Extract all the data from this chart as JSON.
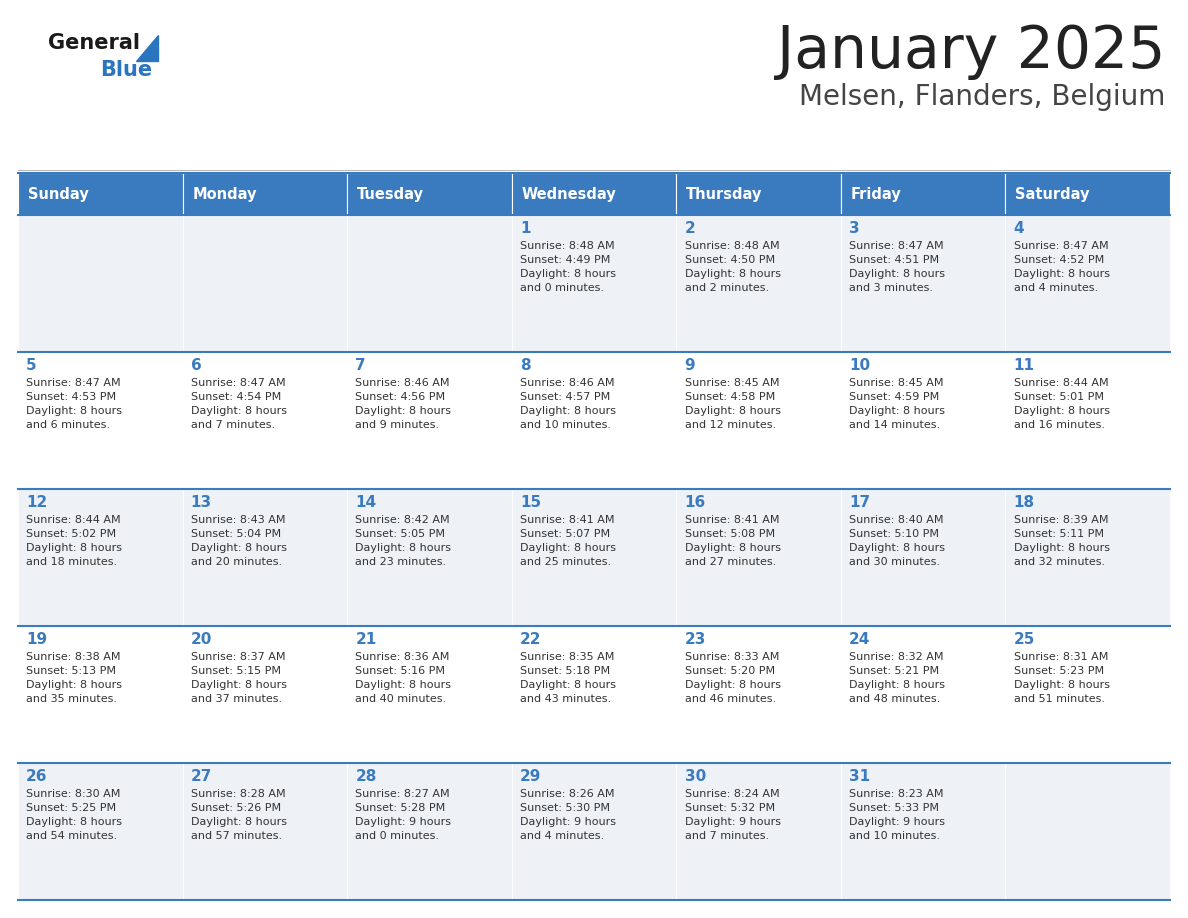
{
  "title": "January 2025",
  "subtitle": "Melsen, Flanders, Belgium",
  "header_color": "#3a7bbf",
  "header_text_color": "#ffffff",
  "cell_bg_color": "#eef2f7",
  "alt_cell_bg_color": "#ffffff",
  "day_headers": [
    "Sunday",
    "Monday",
    "Tuesday",
    "Wednesday",
    "Thursday",
    "Friday",
    "Saturday"
  ],
  "title_color": "#222222",
  "subtitle_color": "#444444",
  "day_number_color": "#3a7bbf",
  "cell_text_color": "#333333",
  "grid_color": "#3a7bbf",
  "weeks": [
    [
      {
        "day": null,
        "info": null
      },
      {
        "day": null,
        "info": null
      },
      {
        "day": null,
        "info": null
      },
      {
        "day": "1",
        "info": "Sunrise: 8:48 AM\nSunset: 4:49 PM\nDaylight: 8 hours\nand 0 minutes."
      },
      {
        "day": "2",
        "info": "Sunrise: 8:48 AM\nSunset: 4:50 PM\nDaylight: 8 hours\nand 2 minutes."
      },
      {
        "day": "3",
        "info": "Sunrise: 8:47 AM\nSunset: 4:51 PM\nDaylight: 8 hours\nand 3 minutes."
      },
      {
        "day": "4",
        "info": "Sunrise: 8:47 AM\nSunset: 4:52 PM\nDaylight: 8 hours\nand 4 minutes."
      }
    ],
    [
      {
        "day": "5",
        "info": "Sunrise: 8:47 AM\nSunset: 4:53 PM\nDaylight: 8 hours\nand 6 minutes."
      },
      {
        "day": "6",
        "info": "Sunrise: 8:47 AM\nSunset: 4:54 PM\nDaylight: 8 hours\nand 7 minutes."
      },
      {
        "day": "7",
        "info": "Sunrise: 8:46 AM\nSunset: 4:56 PM\nDaylight: 8 hours\nand 9 minutes."
      },
      {
        "day": "8",
        "info": "Sunrise: 8:46 AM\nSunset: 4:57 PM\nDaylight: 8 hours\nand 10 minutes."
      },
      {
        "day": "9",
        "info": "Sunrise: 8:45 AM\nSunset: 4:58 PM\nDaylight: 8 hours\nand 12 minutes."
      },
      {
        "day": "10",
        "info": "Sunrise: 8:45 AM\nSunset: 4:59 PM\nDaylight: 8 hours\nand 14 minutes."
      },
      {
        "day": "11",
        "info": "Sunrise: 8:44 AM\nSunset: 5:01 PM\nDaylight: 8 hours\nand 16 minutes."
      }
    ],
    [
      {
        "day": "12",
        "info": "Sunrise: 8:44 AM\nSunset: 5:02 PM\nDaylight: 8 hours\nand 18 minutes."
      },
      {
        "day": "13",
        "info": "Sunrise: 8:43 AM\nSunset: 5:04 PM\nDaylight: 8 hours\nand 20 minutes."
      },
      {
        "day": "14",
        "info": "Sunrise: 8:42 AM\nSunset: 5:05 PM\nDaylight: 8 hours\nand 23 minutes."
      },
      {
        "day": "15",
        "info": "Sunrise: 8:41 AM\nSunset: 5:07 PM\nDaylight: 8 hours\nand 25 minutes."
      },
      {
        "day": "16",
        "info": "Sunrise: 8:41 AM\nSunset: 5:08 PM\nDaylight: 8 hours\nand 27 minutes."
      },
      {
        "day": "17",
        "info": "Sunrise: 8:40 AM\nSunset: 5:10 PM\nDaylight: 8 hours\nand 30 minutes."
      },
      {
        "day": "18",
        "info": "Sunrise: 8:39 AM\nSunset: 5:11 PM\nDaylight: 8 hours\nand 32 minutes."
      }
    ],
    [
      {
        "day": "19",
        "info": "Sunrise: 8:38 AM\nSunset: 5:13 PM\nDaylight: 8 hours\nand 35 minutes."
      },
      {
        "day": "20",
        "info": "Sunrise: 8:37 AM\nSunset: 5:15 PM\nDaylight: 8 hours\nand 37 minutes."
      },
      {
        "day": "21",
        "info": "Sunrise: 8:36 AM\nSunset: 5:16 PM\nDaylight: 8 hours\nand 40 minutes."
      },
      {
        "day": "22",
        "info": "Sunrise: 8:35 AM\nSunset: 5:18 PM\nDaylight: 8 hours\nand 43 minutes."
      },
      {
        "day": "23",
        "info": "Sunrise: 8:33 AM\nSunset: 5:20 PM\nDaylight: 8 hours\nand 46 minutes."
      },
      {
        "day": "24",
        "info": "Sunrise: 8:32 AM\nSunset: 5:21 PM\nDaylight: 8 hours\nand 48 minutes."
      },
      {
        "day": "25",
        "info": "Sunrise: 8:31 AM\nSunset: 5:23 PM\nDaylight: 8 hours\nand 51 minutes."
      }
    ],
    [
      {
        "day": "26",
        "info": "Sunrise: 8:30 AM\nSunset: 5:25 PM\nDaylight: 8 hours\nand 54 minutes."
      },
      {
        "day": "27",
        "info": "Sunrise: 8:28 AM\nSunset: 5:26 PM\nDaylight: 8 hours\nand 57 minutes."
      },
      {
        "day": "28",
        "info": "Sunrise: 8:27 AM\nSunset: 5:28 PM\nDaylight: 9 hours\nand 0 minutes."
      },
      {
        "day": "29",
        "info": "Sunrise: 8:26 AM\nSunset: 5:30 PM\nDaylight: 9 hours\nand 4 minutes."
      },
      {
        "day": "30",
        "info": "Sunrise: 8:24 AM\nSunset: 5:32 PM\nDaylight: 9 hours\nand 7 minutes."
      },
      {
        "day": "31",
        "info": "Sunrise: 8:23 AM\nSunset: 5:33 PM\nDaylight: 9 hours\nand 10 minutes."
      },
      {
        "day": null,
        "info": null
      }
    ]
  ],
  "logo_general_color": "#1a1a1a",
  "logo_blue_color": "#2a75c0",
  "fig_width": 11.88,
  "fig_height": 9.18,
  "dpi": 100
}
